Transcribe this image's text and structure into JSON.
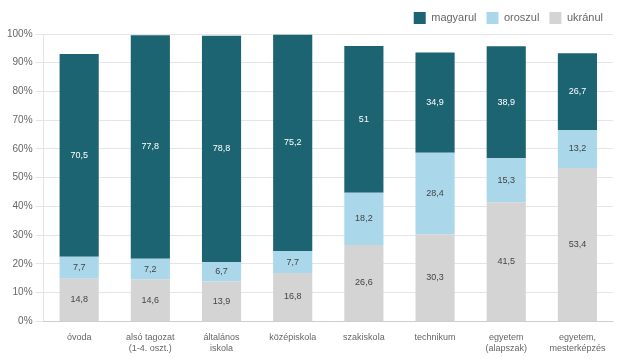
{
  "chart_data": {
    "type": "bar",
    "stacked": true,
    "categories": [
      "óvoda",
      "alsó tagozat\n(1-4. oszt.)",
      "általános\niskola",
      "középiskola",
      "szakiskola",
      "technikum",
      "egyetem\n(alapszak)",
      "egyetem,\nmesterképzés"
    ],
    "series": [
      {
        "name": "ukránul",
        "color": "#d4d4d4",
        "values": [
          14.8,
          14.6,
          13.9,
          16.8,
          26.6,
          30.3,
          41.5,
          53.4
        ],
        "value_labels": [
          "14,8",
          "14,6",
          "13,9",
          "16,8",
          "26,6",
          "30,3",
          "41,5",
          "53,4"
        ]
      },
      {
        "name": "oroszul",
        "color": "#aad7ea",
        "values": [
          7.7,
          7.2,
          6.7,
          7.7,
          18.2,
          28.4,
          15.3,
          13.2
        ],
        "value_labels": [
          "7,7",
          "7,2",
          "6,7",
          "7,7",
          "18,2",
          "28,4",
          "15,3",
          "13,2"
        ]
      },
      {
        "name": "magyarul",
        "color": "#1d6472",
        "values": [
          70.5,
          77.8,
          78.8,
          75.2,
          51.0,
          34.9,
          38.9,
          26.7
        ],
        "value_labels": [
          "70,5",
          "77,8",
          "78,8",
          "75,2",
          "51",
          "34,9",
          "38,9",
          "26,7"
        ]
      }
    ],
    "ylim": [
      0,
      100
    ],
    "yticks": [
      {
        "value": 0,
        "label": "0%"
      },
      {
        "value": 10,
        "label": "10%"
      },
      {
        "value": 20,
        "label": "20%"
      },
      {
        "value": 30,
        "label": "30%"
      },
      {
        "value": 40,
        "label": "40%"
      },
      {
        "value": 50,
        "label": "50%"
      },
      {
        "value": 60,
        "label": "60%"
      },
      {
        "value": 70,
        "label": "70%"
      },
      {
        "value": 80,
        "label": "80%"
      },
      {
        "value": 90,
        "label": "90%"
      },
      {
        "value": 100,
        "label": "100%"
      }
    ],
    "grid": true,
    "legend": "upper right",
    "data_labels": true
  }
}
